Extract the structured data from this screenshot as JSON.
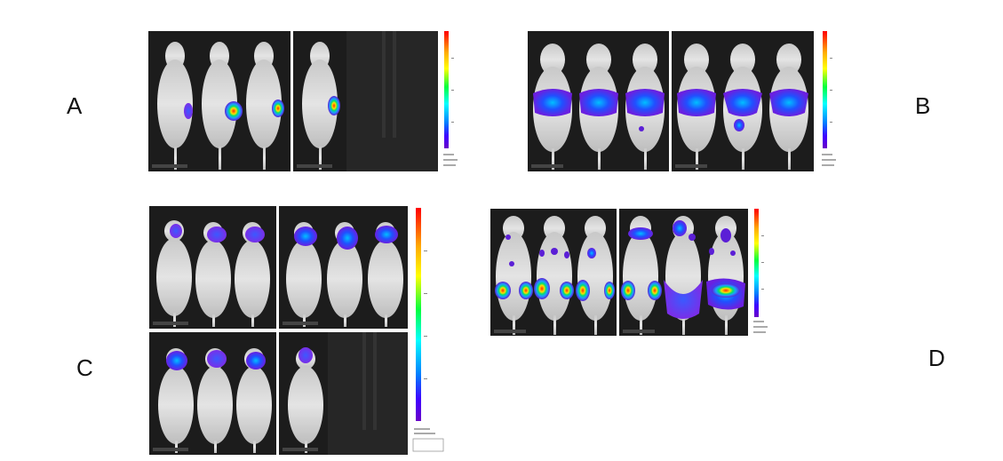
{
  "figure": {
    "panels": [
      {
        "id": "A",
        "label": "A"
      },
      {
        "id": "B",
        "label": "B"
      },
      {
        "id": "C",
        "label": "C"
      },
      {
        "id": "D",
        "label": "D"
      }
    ]
  },
  "colors": {
    "background": "#ffffff",
    "imaging_chamber": "#1c1c1c",
    "mouse_body": "#d8d8d8",
    "signal_low": "#5b1fd6",
    "signal_mid": "#1ca0ff",
    "signal_high": "#ff2a00"
  },
  "colorbar": {
    "gradient": [
      "#ff0000",
      "#ffaa00",
      "#ffff00",
      "#00ff40",
      "#00ffff",
      "#0080ff",
      "#4000ff",
      "#6a00c8"
    ]
  }
}
